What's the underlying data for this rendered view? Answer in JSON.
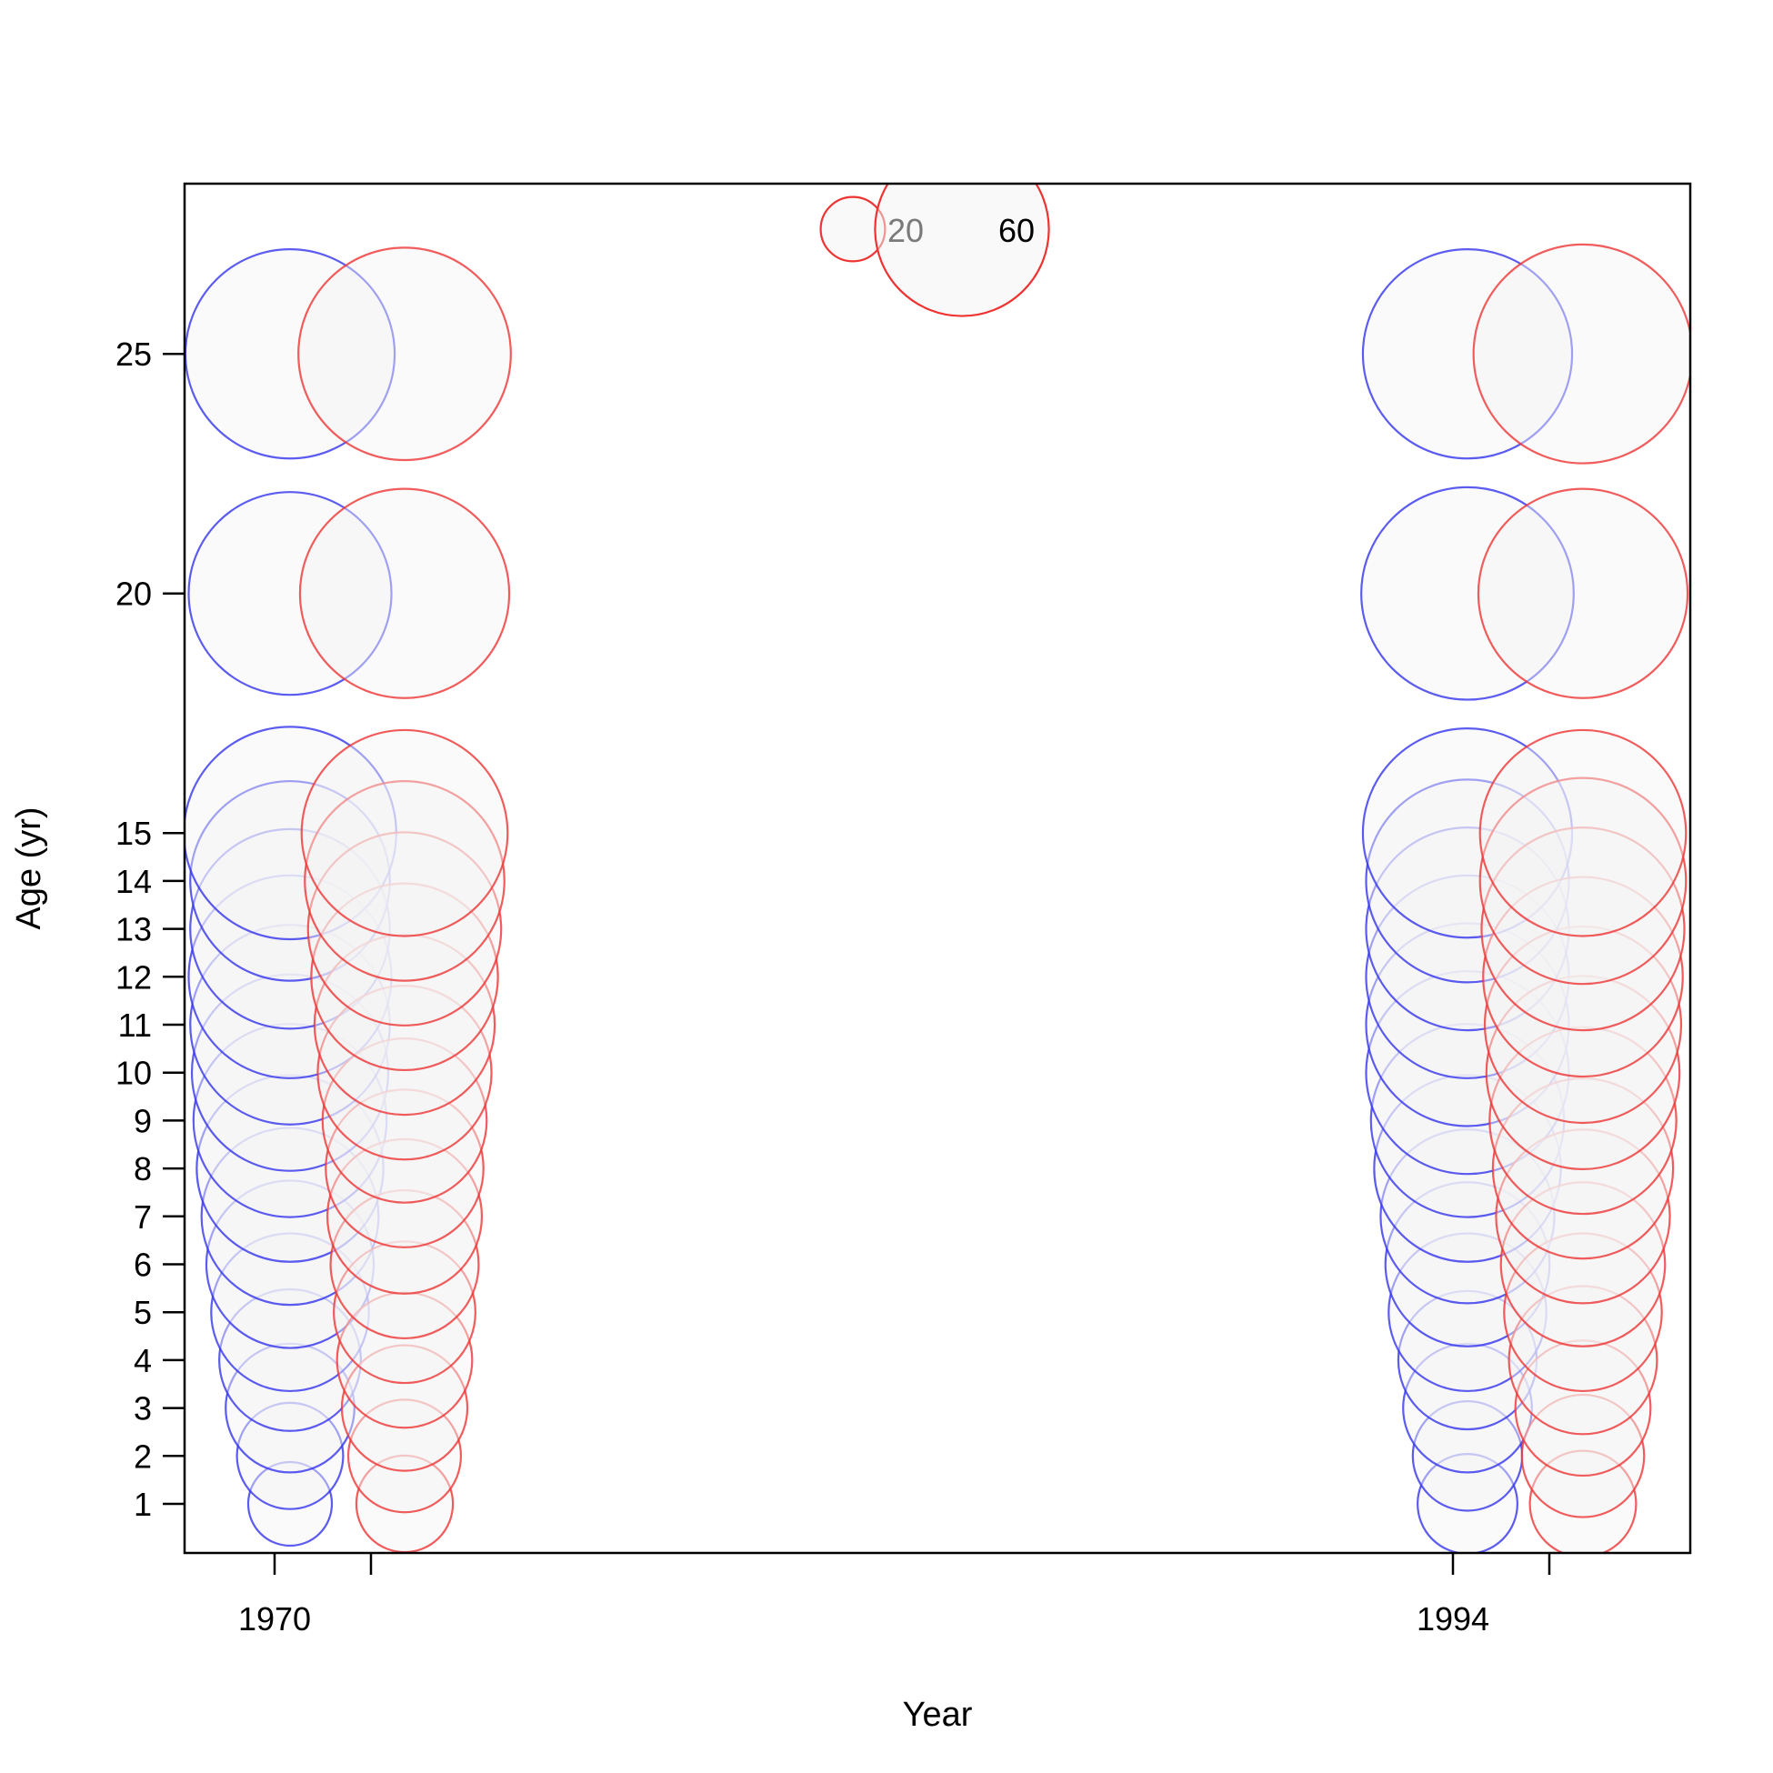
{
  "chart_data": {
    "type": "scatter",
    "subtype": "bubble",
    "title": "",
    "xlabel": "Year",
    "ylabel": "Age (yr)",
    "x_tick_labels": [
      "1970",
      "",
      "1994",
      ""
    ],
    "y_ticks": [
      1,
      2,
      3,
      4,
      5,
      6,
      7,
      8,
      9,
      10,
      11,
      12,
      13,
      14,
      15,
      20,
      25
    ],
    "ages": [
      1,
      2,
      3,
      4,
      5,
      6,
      7,
      8,
      9,
      10,
      11,
      12,
      13,
      14,
      15,
      20,
      25
    ],
    "series": [
      {
        "name": "",
        "color": "#3333ee",
        "year": "1970",
        "values": [
          26,
          33,
          40,
          44,
          49,
          52,
          55,
          58,
          60,
          61,
          62,
          63,
          62,
          62,
          66,
          63,
          65
        ]
      },
      {
        "name": "",
        "color": "#ee3333",
        "year": "",
        "values": [
          30,
          35,
          39,
          42,
          44,
          46,
          48,
          49,
          51,
          54,
          56,
          58,
          60,
          62,
          64,
          65,
          66
        ]
      },
      {
        "name": "",
        "color": "#3333ee",
        "year": "1994",
        "values": [
          31,
          34,
          40,
          43,
          49,
          51,
          54,
          58,
          60,
          63,
          63,
          63,
          63,
          63,
          65,
          66,
          65
        ]
      },
      {
        "name": "",
        "color": "#ee3333",
        "year": "",
        "values": [
          33,
          38,
          42,
          46,
          49,
          51,
          54,
          56,
          58,
          60,
          61,
          62,
          63,
          64,
          64,
          65,
          68
        ]
      }
    ],
    "size_legend": [
      {
        "label": "20",
        "value": 20,
        "color": "#ee3333"
      },
      {
        "label": "60",
        "value": 60,
        "color": "#ee3333"
      }
    ],
    "fill_color": "#f4f4f4",
    "grid": false,
    "legend_position": "top-center"
  }
}
